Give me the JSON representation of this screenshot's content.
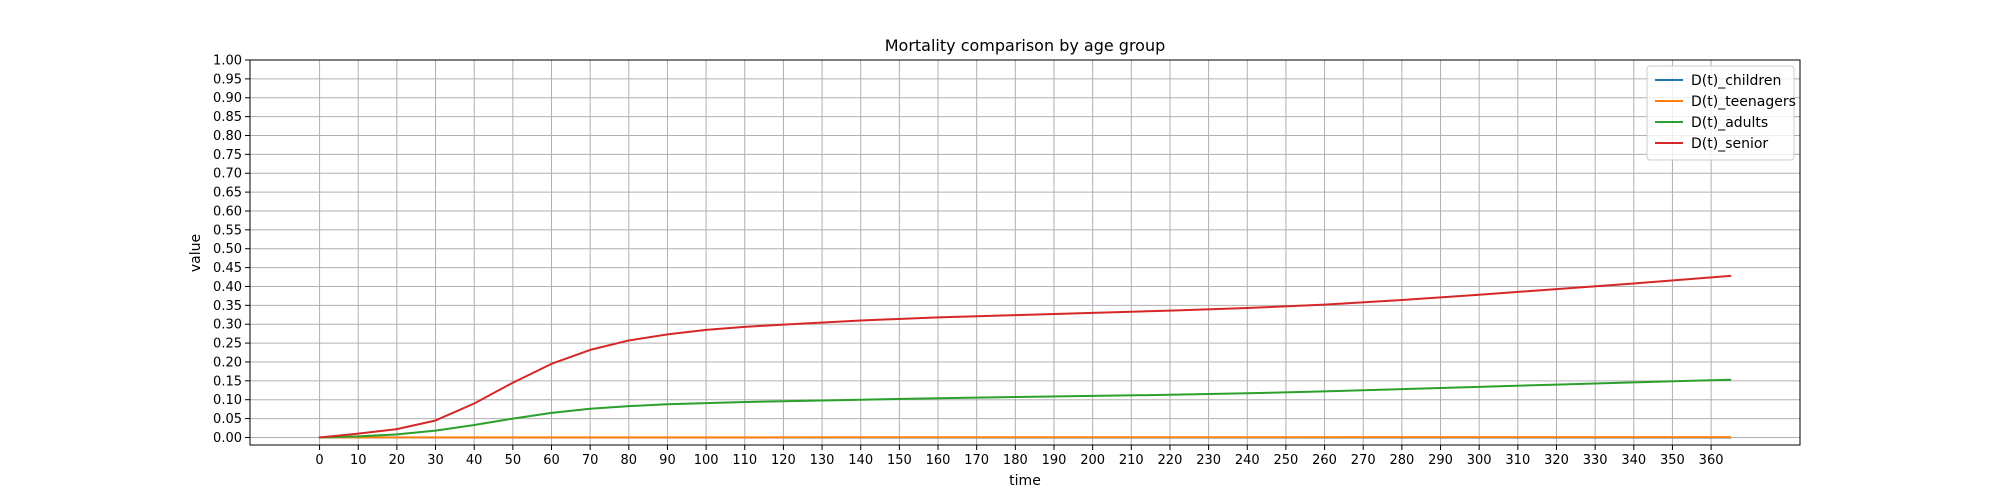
{
  "chart_data": {
    "type": "line",
    "title": "Mortality comparison by age group",
    "xlabel": "time",
    "ylabel": "value",
    "xlim": [
      -18,
      383
    ],
    "ylim": [
      -0.02,
      1.0
    ],
    "xticks": [
      0,
      10,
      20,
      30,
      40,
      50,
      60,
      70,
      80,
      90,
      100,
      110,
      120,
      130,
      140,
      150,
      160,
      170,
      180,
      190,
      200,
      210,
      220,
      230,
      240,
      250,
      260,
      270,
      280,
      290,
      300,
      310,
      320,
      330,
      340,
      350,
      360
    ],
    "yticks": [
      0.0,
      0.05,
      0.1,
      0.15,
      0.2,
      0.25,
      0.3,
      0.35,
      0.4,
      0.45,
      0.5,
      0.55,
      0.6,
      0.65,
      0.7,
      0.75,
      0.8,
      0.85,
      0.9,
      0.95,
      1.0
    ],
    "grid": true,
    "legend_position": "top-right",
    "series": [
      {
        "name": "D(t)_children",
        "color": "#1f77b4",
        "x": [
          0,
          365
        ],
        "y": [
          0.0,
          0.0
        ]
      },
      {
        "name": "D(t)_teenagers",
        "color": "#ff7f0e",
        "x": [
          0,
          365
        ],
        "y": [
          0.0,
          0.001
        ]
      },
      {
        "name": "D(t)_adults",
        "color": "#2ca02c",
        "x": [
          0,
          10,
          20,
          30,
          40,
          50,
          60,
          70,
          80,
          90,
          100,
          110,
          120,
          140,
          160,
          180,
          200,
          220,
          240,
          260,
          280,
          300,
          320,
          340,
          365
        ],
        "y": [
          0.0,
          0.003,
          0.008,
          0.018,
          0.033,
          0.05,
          0.065,
          0.076,
          0.083,
          0.088,
          0.091,
          0.094,
          0.096,
          0.1,
          0.104,
          0.107,
          0.11,
          0.113,
          0.117,
          0.122,
          0.128,
          0.134,
          0.14,
          0.146,
          0.153
        ]
      },
      {
        "name": "D(t)_senior",
        "color": "#d62728",
        "x": [
          0,
          10,
          20,
          30,
          40,
          50,
          60,
          70,
          80,
          90,
          100,
          110,
          120,
          140,
          160,
          180,
          200,
          220,
          240,
          260,
          280,
          300,
          320,
          340,
          365
        ],
        "y": [
          0.0,
          0.01,
          0.022,
          0.045,
          0.09,
          0.145,
          0.195,
          0.232,
          0.257,
          0.273,
          0.285,
          0.293,
          0.299,
          0.31,
          0.318,
          0.324,
          0.33,
          0.336,
          0.343,
          0.352,
          0.364,
          0.378,
          0.393,
          0.408,
          0.428
        ]
      }
    ]
  }
}
